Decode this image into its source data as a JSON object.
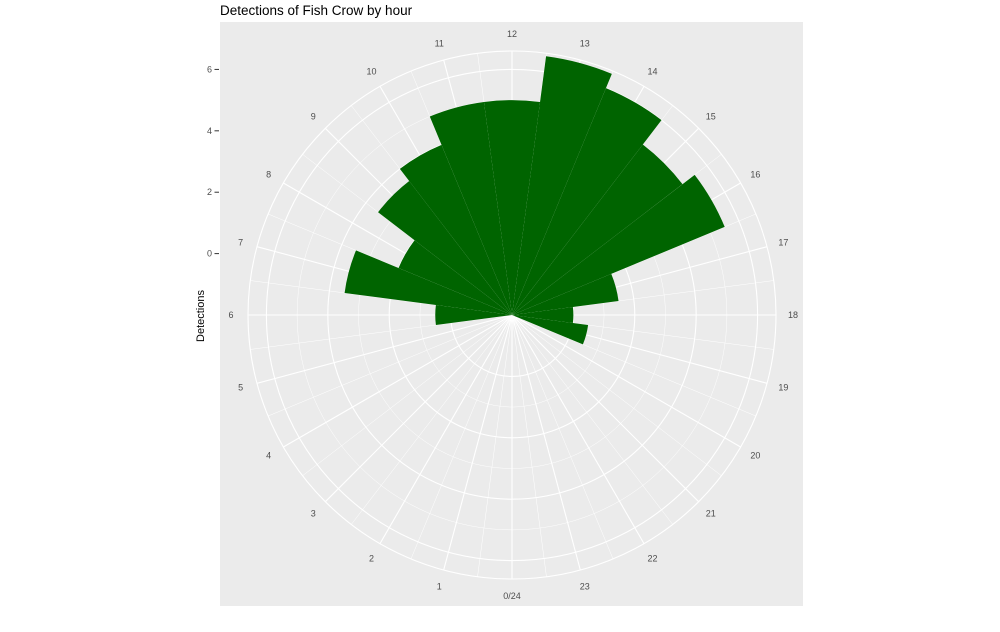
{
  "chart_data": {
    "type": "bar",
    "coord": "polar",
    "title": "Detections of Fish Crow by hour",
    "ylabel": "Detections",
    "xlabel": "",
    "hour_labels": [
      "0/24",
      "1",
      "2",
      "3",
      "4",
      "5",
      "6",
      "7",
      "8",
      "9",
      "10",
      "11",
      "12",
      "13",
      "14",
      "15",
      "16",
      "17",
      "18",
      "19",
      "20",
      "21",
      "22",
      "23"
    ],
    "y_ticks": [
      0,
      2,
      4,
      6
    ],
    "y_tick_labels": [
      "0",
      "2",
      "4",
      "6"
    ],
    "ylim": [
      -2,
      6.6
    ],
    "hours": [
      6,
      7,
      8,
      9,
      10,
      11,
      12,
      13,
      14,
      15,
      16,
      17,
      18,
      19
    ],
    "values": [
      0.5,
      3.5,
      2.0,
      3.5,
      4.0,
      5.0,
      5.0,
      6.5,
      6.0,
      5.0,
      5.5,
      1.5,
      0.0,
      0.5
    ],
    "bar_color": "#006400",
    "panel_color": "#ebebeb",
    "grid_color": "#ffffff"
  }
}
